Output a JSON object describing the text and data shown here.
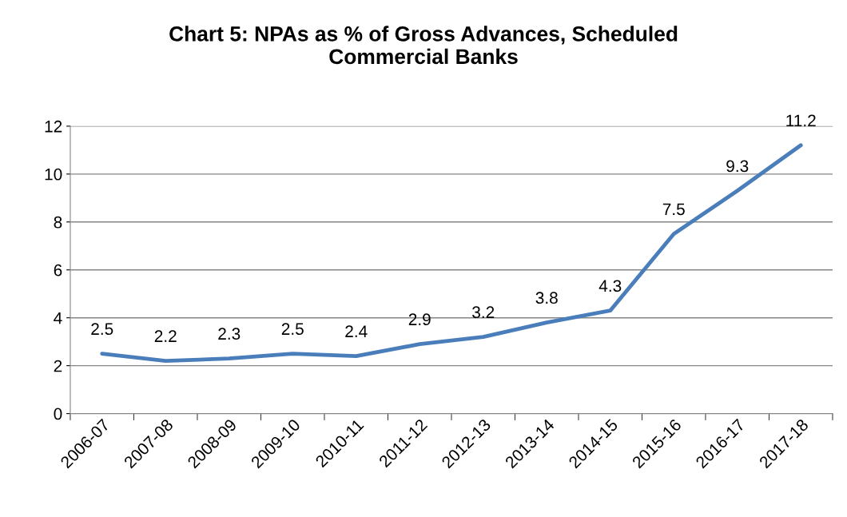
{
  "chart_data": {
    "type": "line",
    "title": "Chart 5: NPAs as % of Gross Advances, Scheduled\nCommercial Banks",
    "categories": [
      "2006-07",
      "2007-08",
      "2008-09",
      "2009-10",
      "2010-11",
      "2011-12",
      "2012-13",
      "2013-14",
      "2014-15",
      "2015-16",
      "2016-17",
      "2017-18"
    ],
    "series": [
      {
        "color": "#4a7ebb",
        "values": [
          2.5,
          2.2,
          2.3,
          2.5,
          2.4,
          2.9,
          3.2,
          3.8,
          4.3,
          7.5,
          9.3,
          11.2
        ]
      }
    ],
    "ylim": [
      0,
      12
    ],
    "yticks": [
      0,
      2,
      4,
      6,
      8,
      10,
      12
    ],
    "grid": "y",
    "data_labels": true,
    "marker": "none",
    "line_style": "solid",
    "legend": false
  }
}
